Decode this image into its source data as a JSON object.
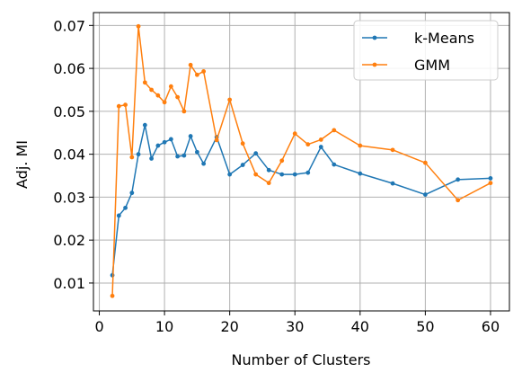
{
  "chart_data": {
    "type": "line",
    "title": "",
    "xlabel": "Number of Clusters",
    "ylabel": "Adj. MI",
    "xlim": [
      -0.9,
      62.9
    ],
    "ylim": [
      0.0035,
      0.073
    ],
    "x_ticks": [
      0,
      10,
      20,
      30,
      40,
      50,
      60
    ],
    "y_ticks": [
      0.01,
      0.02,
      0.03,
      0.04,
      0.05,
      0.06,
      0.07
    ],
    "grid": true,
    "legend_position": "top-right",
    "series": [
      {
        "name": "k-Means",
        "color": "#1f77b4",
        "x": [
          2,
          3,
          4,
          5,
          6,
          7,
          8,
          9,
          10,
          11,
          12,
          13,
          14,
          15,
          16,
          18,
          20,
          22,
          24,
          26,
          28,
          30,
          32,
          34,
          36,
          40,
          45,
          50,
          55,
          60
        ],
        "y": [
          0.0118,
          0.0257,
          0.0275,
          0.031,
          0.04,
          0.0468,
          0.039,
          0.042,
          0.0428,
          0.0435,
          0.0395,
          0.0397,
          0.0442,
          0.0405,
          0.0378,
          0.044,
          0.0353,
          0.0375,
          0.0402,
          0.0363,
          0.0353,
          0.0353,
          0.0357,
          0.0417,
          0.0376,
          0.0355,
          0.0332,
          0.0306,
          0.0341,
          0.0344
        ]
      },
      {
        "name": "GMM",
        "color": "#ff7f0e",
        "x": [
          2,
          3,
          4,
          5,
          6,
          7,
          8,
          9,
          10,
          11,
          12,
          13,
          14,
          15,
          16,
          18,
          20,
          22,
          24,
          26,
          28,
          30,
          32,
          34,
          36,
          40,
          45,
          50,
          55,
          60
        ],
        "y": [
          0.007,
          0.0512,
          0.0515,
          0.0393,
          0.0698,
          0.0567,
          0.055,
          0.0537,
          0.0521,
          0.0558,
          0.0533,
          0.05,
          0.0608,
          0.0585,
          0.0593,
          0.0433,
          0.0527,
          0.0425,
          0.0353,
          0.0333,
          0.0385,
          0.0448,
          0.0423,
          0.0434,
          0.0456,
          0.042,
          0.041,
          0.038,
          0.0293,
          0.0333
        ]
      }
    ]
  }
}
